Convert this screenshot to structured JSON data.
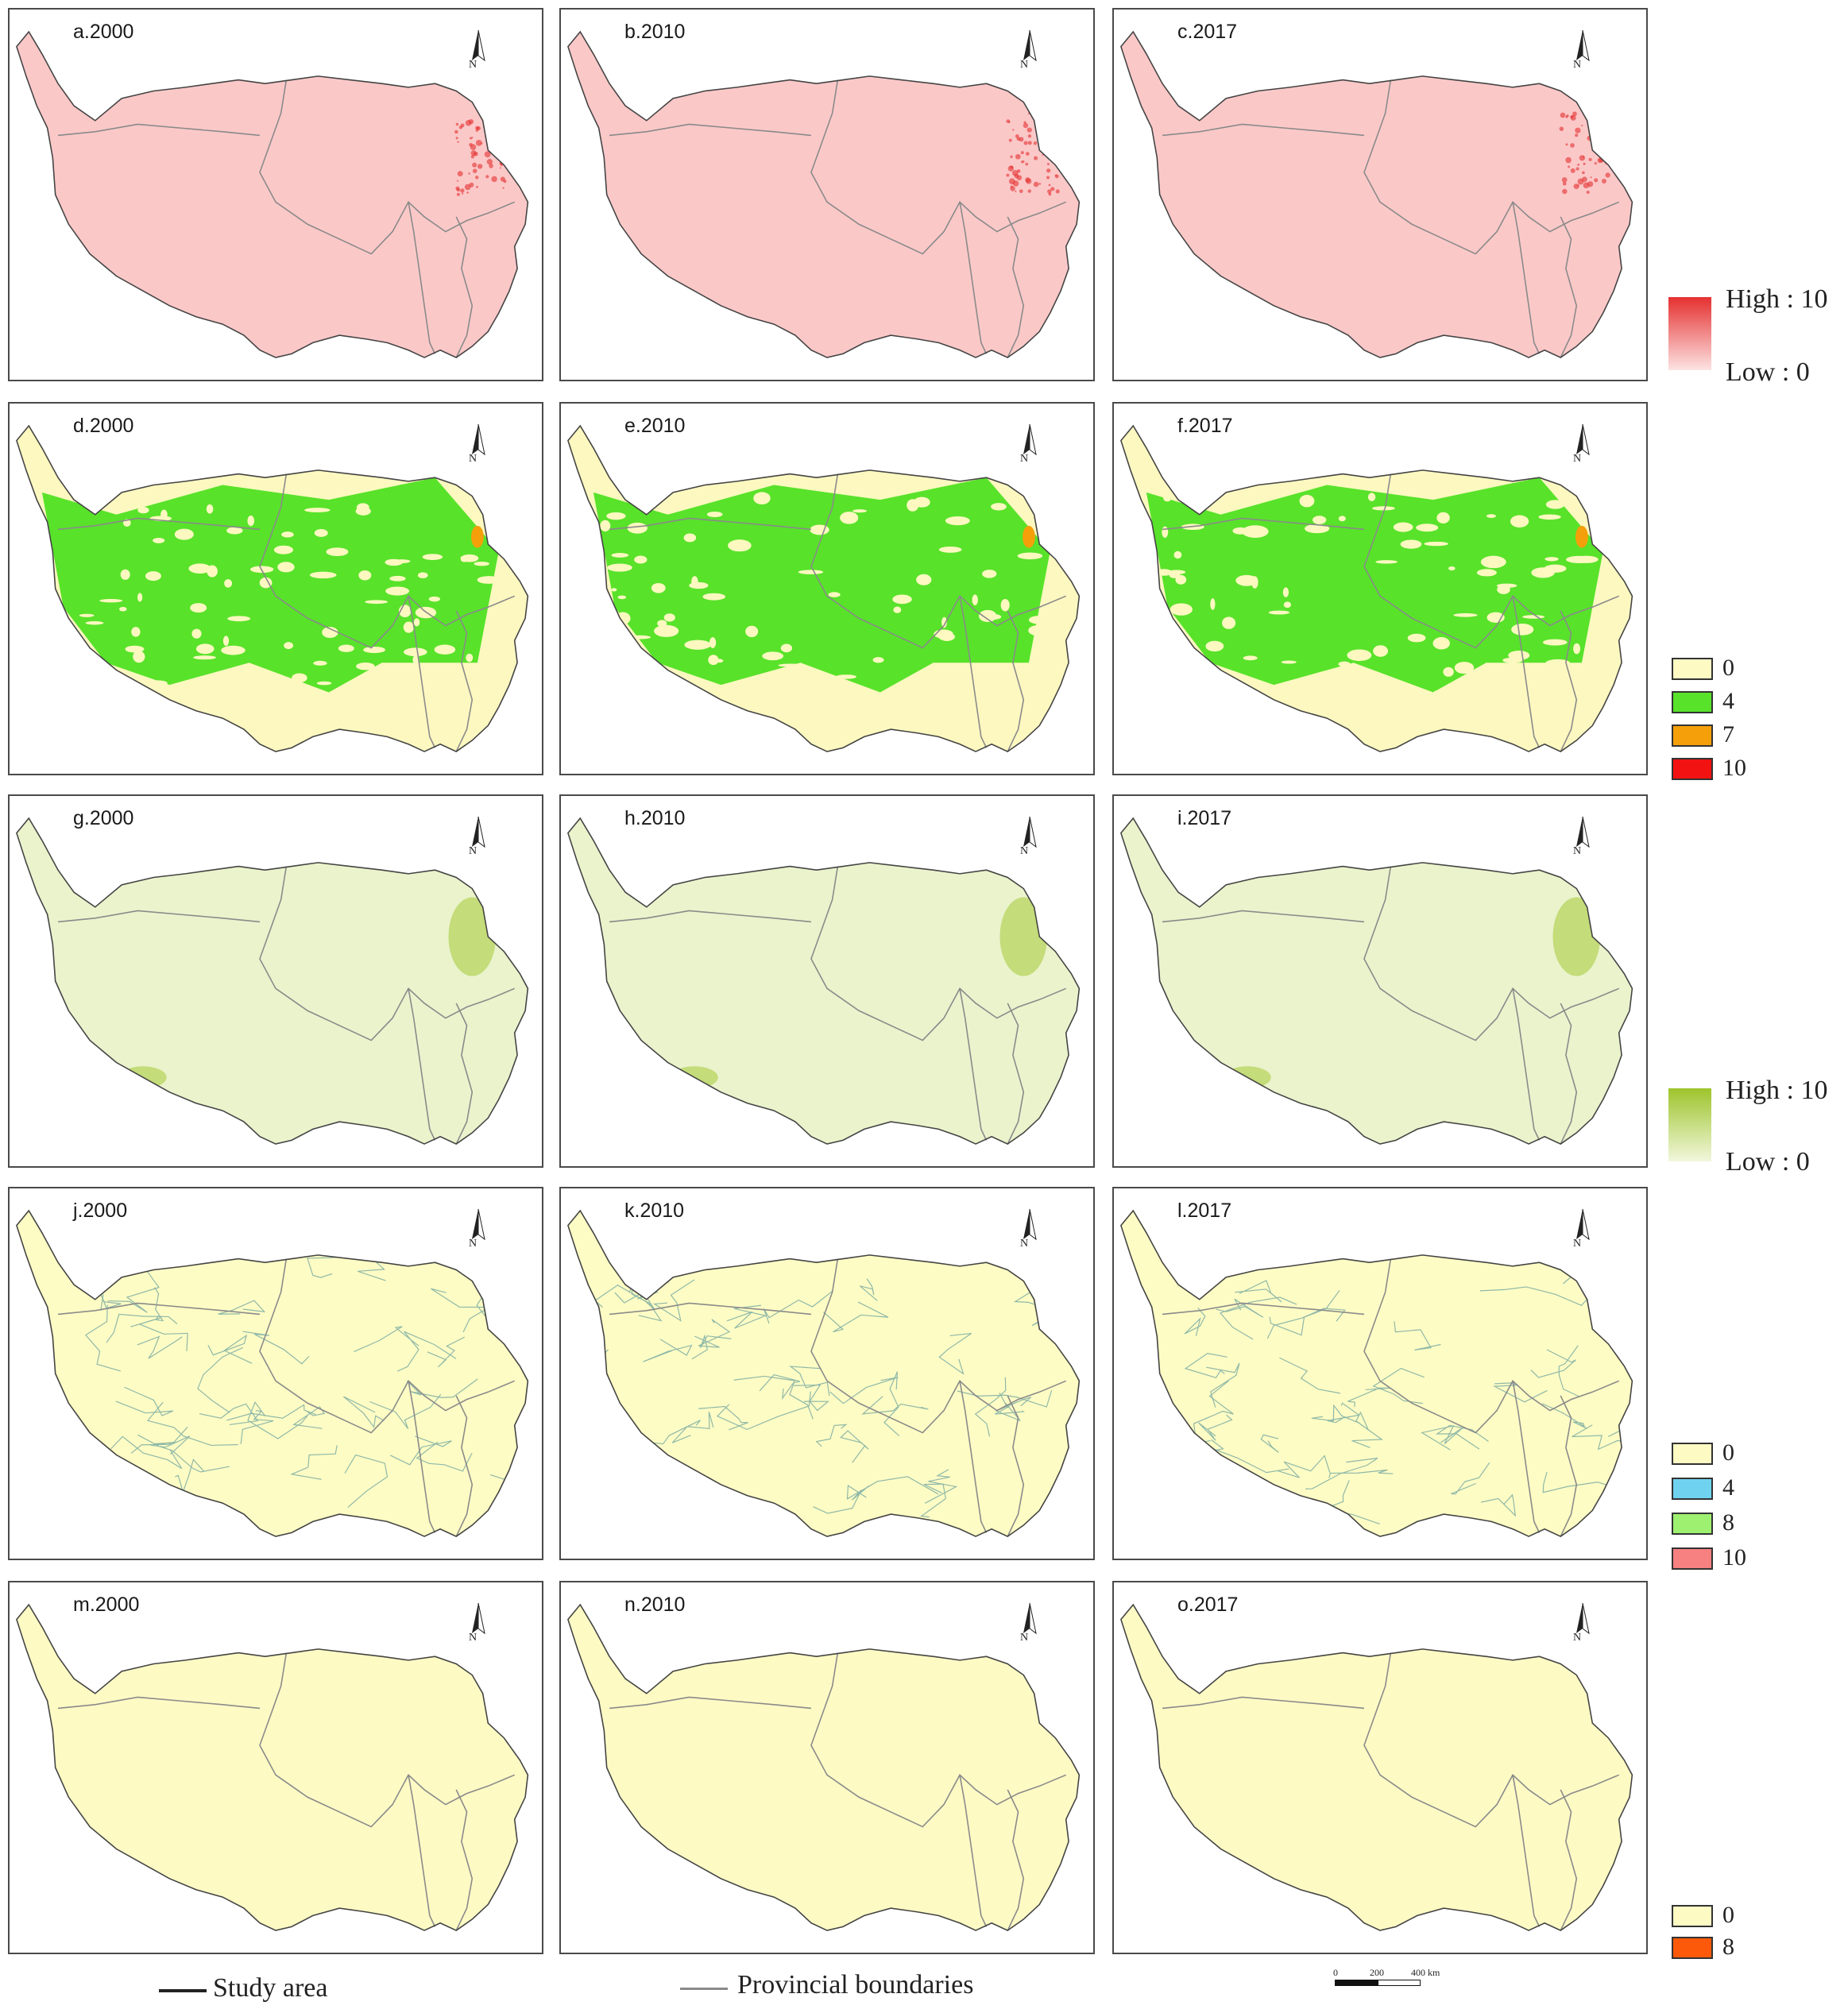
{
  "panels": [
    {
      "label": "a.2000",
      "row": 0,
      "col": 0
    },
    {
      "label": "b.2010",
      "row": 0,
      "col": 1
    },
    {
      "label": "c.2017",
      "row": 0,
      "col": 2
    },
    {
      "label": "d.2000",
      "row": 1,
      "col": 0
    },
    {
      "label": "e.2010",
      "row": 1,
      "col": 1
    },
    {
      "label": "f.2017",
      "row": 1,
      "col": 2
    },
    {
      "label": "g.2000",
      "row": 2,
      "col": 0
    },
    {
      "label": "h.2010",
      "row": 2,
      "col": 1
    },
    {
      "label": "i.2017",
      "row": 2,
      "col": 2
    },
    {
      "label": "j.2000",
      "row": 3,
      "col": 0
    },
    {
      "label": "k.2010",
      "row": 3,
      "col": 1
    },
    {
      "label": "l.2017",
      "row": 3,
      "col": 2
    },
    {
      "label": "m.2000",
      "row": 4,
      "col": 0
    },
    {
      "label": "n.2010",
      "row": 4,
      "col": 1
    },
    {
      "label": "o.2017",
      "row": 4,
      "col": 2
    }
  ],
  "north_label": "N",
  "rows": [
    {
      "fill": "#fbc8c8",
      "style": "pink"
    },
    {
      "fill": "#fcf8c0",
      "style": "green-class"
    },
    {
      "fill": "#eaf3cc",
      "style": "olive"
    },
    {
      "fill": "#fdfcc4",
      "style": "roads"
    },
    {
      "fill": "#fdfac4",
      "style": "plain"
    }
  ],
  "legend_red": {
    "high": "High : 10",
    "low": "Low : 0",
    "color_high": "#e53030",
    "color_low": "#fde3e3"
  },
  "legend_class1": {
    "items": [
      {
        "label": "0",
        "color": "#fdfac4"
      },
      {
        "label": "4",
        "color": "#58e22a"
      },
      {
        "label": "7",
        "color": "#f5a00a"
      },
      {
        "label": "10",
        "color": "#f21212"
      }
    ]
  },
  "legend_olive": {
    "high": "High : 10",
    "low": "Low : 0",
    "color_high": "#9ec42c",
    "color_low": "#f1f7dc"
  },
  "legend_class2": {
    "items": [
      {
        "label": "0",
        "color": "#fdfac4"
      },
      {
        "label": "4",
        "color": "#6fd3f0"
      },
      {
        "label": "8",
        "color": "#9ef070"
      },
      {
        "label": "10",
        "color": "#f78080"
      }
    ]
  },
  "legend_class3": {
    "items": [
      {
        "label": "0",
        "color": "#fdfac4"
      },
      {
        "label": "8",
        "color": "#fc5a0a"
      }
    ]
  },
  "bottom": {
    "study_area": "Study area",
    "provincial": "Provincial boundaries",
    "scale_labels": [
      "0",
      "200",
      "400 km"
    ]
  }
}
